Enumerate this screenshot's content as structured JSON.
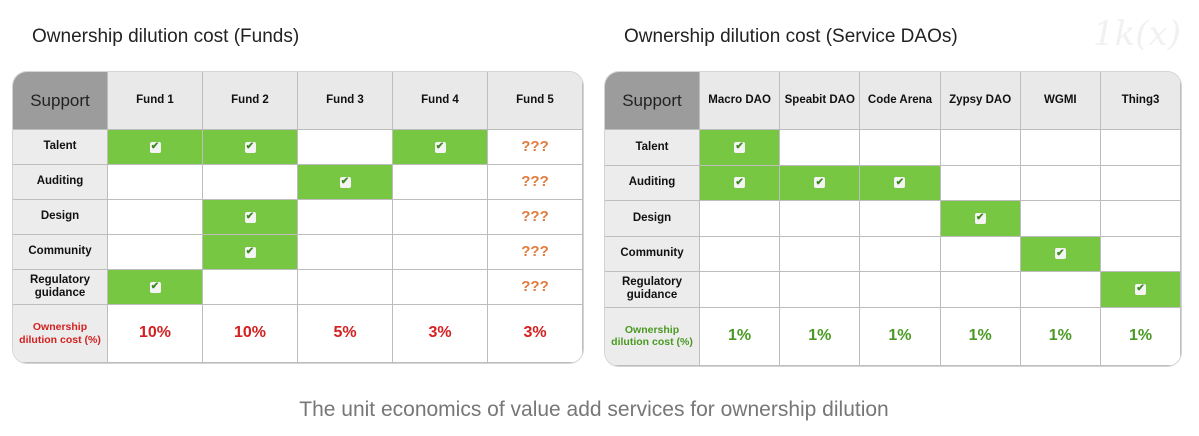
{
  "watermark": "1k(x)",
  "caption": "The unit economics of value add services for ownership dilution",
  "colors": {
    "green": "#77c743",
    "red": "#d42020",
    "orange": "#e07b3c",
    "green_text": "#4a9a22"
  },
  "funds": {
    "title": "Ownership dilution cost (Funds)",
    "corner": "Support",
    "columns": [
      "Fund 1",
      "Fund 2",
      "Fund 3",
      "Fund 4",
      "Fund 5"
    ],
    "rows": [
      {
        "label": "Talent",
        "cells": [
          "check",
          "check",
          "",
          "check",
          "???"
        ]
      },
      {
        "label": "Auditing",
        "cells": [
          "",
          "",
          "check",
          "",
          "???"
        ]
      },
      {
        "label": "Design",
        "cells": [
          "",
          "check",
          "",
          "",
          "???"
        ]
      },
      {
        "label": "Community",
        "cells": [
          "",
          "check",
          "",
          "",
          "???"
        ]
      },
      {
        "label": "Regulatory guidance",
        "cells": [
          "check",
          "",
          "",
          "",
          "???"
        ]
      }
    ],
    "cost_label": "Ownership dilution cost (%)",
    "costs": [
      "10%",
      "10%",
      "5%",
      "3%",
      "3%"
    ]
  },
  "daos": {
    "title": "Ownership dilution cost (Service DAOs)",
    "corner": "Support",
    "columns": [
      "Macro DAO",
      "Speabit DAO",
      "Code Arena",
      "Zypsy DAO",
      "WGMI",
      "Thing3"
    ],
    "rows": [
      {
        "label": "Talent",
        "cells": [
          "check",
          "",
          "",
          "",
          "",
          ""
        ]
      },
      {
        "label": "Auditing",
        "cells": [
          "check",
          "check",
          "check",
          "",
          "",
          ""
        ]
      },
      {
        "label": "Design",
        "cells": [
          "",
          "",
          "",
          "check",
          "",
          ""
        ]
      },
      {
        "label": "Community",
        "cells": [
          "",
          "",
          "",
          "",
          "check",
          ""
        ]
      },
      {
        "label": "Regulatory guidance",
        "cells": [
          "",
          "",
          "",
          "",
          "",
          "check"
        ]
      }
    ],
    "cost_label": "Ownership dilution cost (%)",
    "costs": [
      "1%",
      "1%",
      "1%",
      "1%",
      "1%",
      "1%"
    ]
  }
}
